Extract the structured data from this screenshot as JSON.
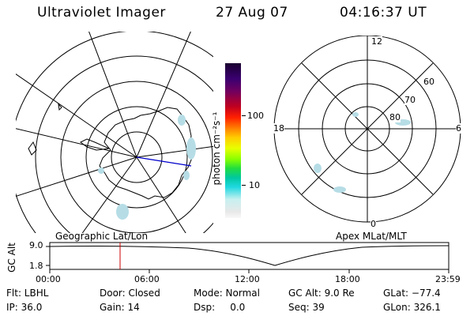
{
  "header": {
    "instrument": "Ultraviolet Imager",
    "date": "27 Aug 07",
    "time": "04:16:37 UT"
  },
  "colorbar": {
    "label": "photon cm⁻²s⁻¹",
    "ticks": [
      "100",
      "10"
    ],
    "scale": "log"
  },
  "left_map": {
    "label": "Geographic Lat/Lon"
  },
  "right_map": {
    "label": "Apex MLat/MLT",
    "mlt_labels": [
      "12",
      "18",
      "6",
      "0"
    ],
    "lat_labels": [
      "60",
      "70",
      "80"
    ]
  },
  "altitude_plot": {
    "ylabel": "GC Alt",
    "yticks": [
      "9.0",
      "1.8"
    ],
    "xticks": [
      "00:00",
      "06:00",
      "12:00",
      "18:00",
      "23:59"
    ],
    "current_time_marker": "04:16"
  },
  "status": {
    "flt": "Flt: LBHL",
    "ip": "IP: 36.0",
    "door": "Door: Closed",
    "gain": "Gain: 14",
    "mode": "Mode: Normal",
    "dsp": "Dsp:     0.0",
    "gc_alt": "GC Alt: 9.0 Re",
    "seq": "Seq: 39",
    "glat": "GLat: −77.4",
    "glon": "GLon: 326.1"
  },
  "colors": {
    "foreground": "#000000",
    "marker": "#cc0000",
    "meridian": "#0000cc",
    "aurora": "#b6dde6"
  }
}
